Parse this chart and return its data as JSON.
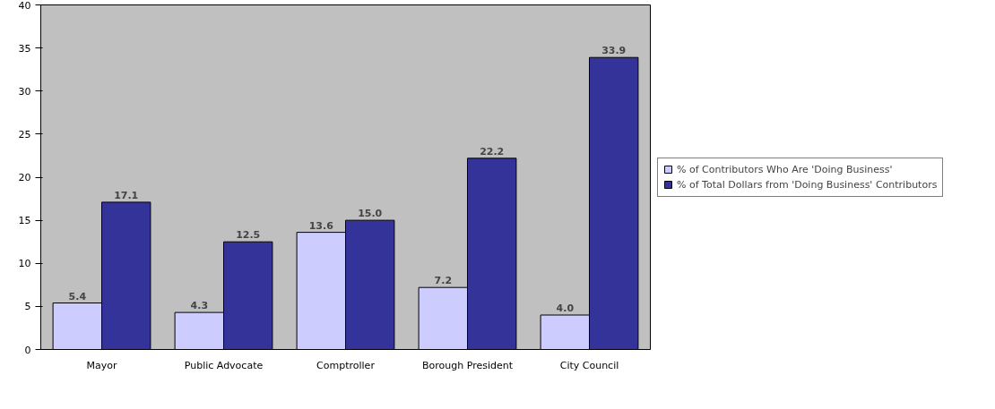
{
  "chart_data": {
    "type": "bar",
    "categories": [
      "Mayor",
      "Public Advocate",
      "Comptroller",
      "Borough President",
      "City Council"
    ],
    "series": [
      {
        "name": "% of Contributors Who Are 'Doing Business'",
        "color": "#ccccff",
        "values": [
          5.4,
          4.3,
          13.6,
          7.2,
          4.0
        ],
        "value_labels": [
          "5.4",
          "4.3",
          "13.6",
          "7.2",
          "4.0"
        ]
      },
      {
        "name": "% of Total Dollars from 'Doing Business' Contributors",
        "color": "#333399",
        "values": [
          17.1,
          12.5,
          15.0,
          22.2,
          33.9
        ],
        "value_labels": [
          "17.1",
          "12.5",
          "15.0",
          "22.2",
          "33.9"
        ]
      }
    ],
    "ylim": [
      0,
      40
    ],
    "yticks": [
      0,
      5,
      10,
      15,
      20,
      25,
      30,
      35,
      40
    ],
    "grid": false,
    "legend": "right"
  }
}
